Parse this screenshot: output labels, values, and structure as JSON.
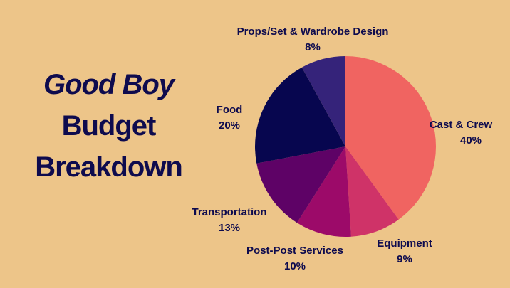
{
  "chart_data": {
    "type": "pie",
    "title_lines": [
      "Good Boy",
      "Budget",
      "Breakdown"
    ],
    "slices": [
      {
        "label": "Cast & Crew",
        "value": 40,
        "value_label": "40%",
        "color": "#F06461"
      },
      {
        "label": "Equipment",
        "value": 9,
        "value_label": "9%",
        "color": "#CF3368"
      },
      {
        "label": "Post-Post Services",
        "value": 10,
        "value_label": "10%",
        "color": "#9C0A69"
      },
      {
        "label": "Transportation",
        "value": 13,
        "value_label": "13%",
        "color": "#5E0266"
      },
      {
        "label": "Food",
        "value": 20,
        "value_label": "20%",
        "color": "#07064F"
      },
      {
        "label": "Props/Set & Wardrobe Design",
        "value": 8,
        "value_label": "8%",
        "color": "#35237A"
      }
    ],
    "start_angle": "12 o'clock",
    "direction": "clockwise",
    "legend": "none"
  }
}
